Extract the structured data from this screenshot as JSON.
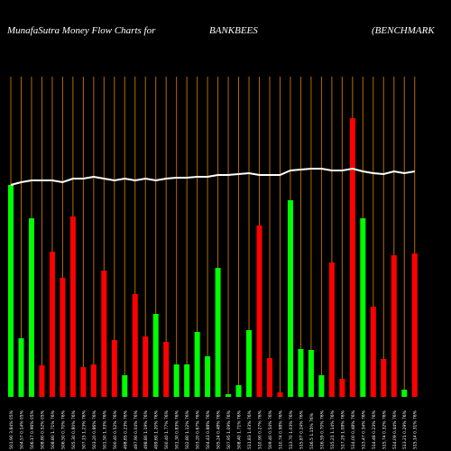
{
  "chart_data": {
    "type": "bar",
    "title": "MunafaSutra  Money Flow  Charts for",
    "symbol": "BANKBEES",
    "subtitle": "(BENCHMARK",
    "categories": [
      "501.90 3.84% 05%",
      "504.57 0.14% 05%",
      "506.17 0.96% 05%",
      "508.80 0.52% 05%",
      "508.80 1.71% 76%",
      "506.50 0.70% 76%",
      "505.30 0.80% 76%",
      "507.15 1.23% 76%",
      "503.20 0.86% 76%",
      "501.50 1.33% 76%",
      "500.40 0.52% 76%",
      "498.85 0.23% 76%",
      "497.90 0.04% 76%",
      "498.80 1.19% 76%",
      "499.60 1.20% 76%",
      "500.40 1.77% 76%",
      "501.30 0.83% 76%",
      "502.80 1.12% 76%",
      "503.20 0.67% 76%",
      "504.43 0.88% 76%",
      "505.24 0.48% 76%",
      "507.95 1.09% 76%",
      "508.40 1.71% 76%",
      "511.83 1.03% 76%",
      "510.90 0.27% 76%",
      "509.40 0.54% 76%",
      "510.74 0.98% 76%",
      "513.70 1.03% 76%",
      "515.87 0.24% 76%",
      "516.5 1.15% 76%",
      "516.59 0.70% 76%",
      "515.21 1.14% 76%",
      "517.29 1.08% 76%",
      "514.00 0.48% 76%",
      "513.47 0.34% 76%",
      "514.48 0.23% 76%",
      "515.74 0.32% 76%",
      "514.09 0.44% 76%",
      "513.21 0.29% 76%",
      "515.14 0.31% 76%"
    ],
    "values": [
      235,
      65,
      198,
      35,
      161,
      132,
      200,
      33,
      36,
      140,
      63,
      24,
      114,
      67,
      92,
      61,
      36,
      36,
      72,
      45,
      143,
      3,
      13,
      74,
      190,
      43,
      5,
      218,
      53,
      52,
      24,
      149,
      20,
      309,
      198,
      100,
      42,
      157,
      8,
      159
    ],
    "colors": [
      "#00ff00",
      "#00ff00",
      "#00ff00",
      "#ff0000",
      "#ff0000",
      "#ff0000",
      "#ff0000",
      "#ff0000",
      "#ff0000",
      "#ff0000",
      "#ff0000",
      "#00ff00",
      "#ff0000",
      "#ff0000",
      "#00ff00",
      "#ff0000",
      "#00ff00",
      "#00ff00",
      "#00ff00",
      "#00ff00",
      "#00ff00",
      "#00ff00",
      "#00ff00",
      "#00ff00",
      "#ff0000",
      "#ff0000",
      "#ff0000",
      "#00ff00",
      "#00ff00",
      "#00ff00",
      "#00ff00",
      "#ff0000",
      "#ff0000",
      "#ff0000",
      "#00ff00",
      "#ff0000",
      "#ff0000",
      "#ff0000",
      "#00ff00",
      "#ff0000"
    ],
    "line": [
      235,
      238,
      240,
      240,
      240,
      238,
      242,
      242,
      244,
      242,
      240,
      242,
      240,
      242,
      240,
      242,
      243,
      243,
      244,
      244,
      246,
      246,
      247,
      248,
      246,
      246,
      246,
      251,
      252,
      253,
      253,
      251,
      251,
      253,
      250,
      248,
      247,
      250,
      248,
      250
    ],
    "line_color": "#ffffff",
    "grid_color": "#b86a00",
    "ylim": [
      0,
      355
    ]
  }
}
